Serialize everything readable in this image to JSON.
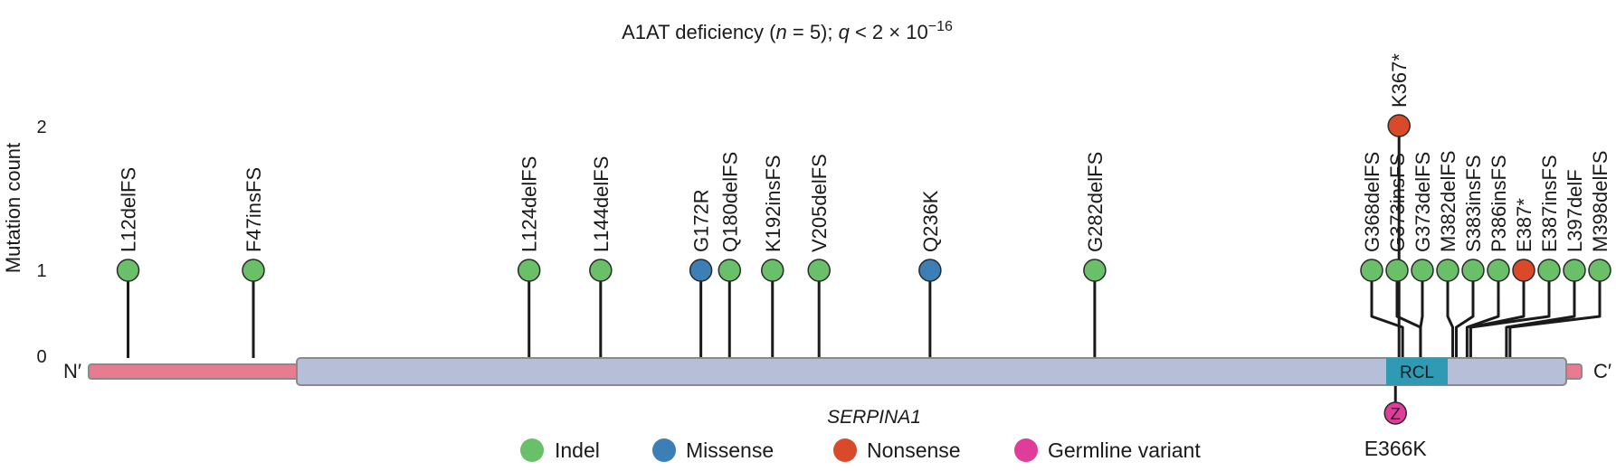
{
  "chart_data": {
    "type": "lollipop",
    "title_prefix": "A1AT deficiency (",
    "title_n_symbol": "n",
    "title_n_value": " = 5); ",
    "title_q_symbol": "q",
    "title_q_rest": " < 2 × 10",
    "title_exponent": "−16",
    "ylabel": "Mutation count",
    "yticks": [
      "0",
      "1",
      "2"
    ],
    "ylim": [
      0,
      2
    ],
    "gene": "SERPINA1",
    "protein_length": 418,
    "n_terminus_label": "N′",
    "c_terminus_label": "C′",
    "domains": [
      {
        "name": "signal",
        "label": "",
        "start": 1,
        "end": 24,
        "color": "#e77b8f"
      },
      {
        "name": "serpin",
        "label": "",
        "start": 24,
        "end": 410,
        "color": "#b7bfd8"
      },
      {
        "name": "rcl",
        "label": "RCL",
        "start": 358,
        "end": 374,
        "color": "#2e9ab3"
      }
    ],
    "mutations": [
      {
        "label": "L12delFS",
        "position": 12,
        "count": 1,
        "type": "Indel"
      },
      {
        "label": "F47insFS",
        "position": 47,
        "count": 1,
        "type": "Indel"
      },
      {
        "label": "L124delFS",
        "position": 124,
        "count": 1,
        "type": "Indel"
      },
      {
        "label": "L144delFS",
        "position": 144,
        "count": 1,
        "type": "Indel"
      },
      {
        "label": "G172R",
        "position": 172,
        "count": 1,
        "type": "Missense"
      },
      {
        "label": "Q180delFS",
        "position": 180,
        "count": 1,
        "type": "Indel"
      },
      {
        "label": "K192insFS",
        "position": 192,
        "count": 1,
        "type": "Indel"
      },
      {
        "label": "V205delFS",
        "position": 205,
        "count": 1,
        "type": "Indel"
      },
      {
        "label": "Q236K",
        "position": 236,
        "count": 1,
        "type": "Missense"
      },
      {
        "label": "G282delFS",
        "position": 282,
        "count": 1,
        "type": "Indel"
      },
      {
        "label": "K367*",
        "position": 367,
        "count": 2,
        "type": "Nonsense"
      },
      {
        "label": "G368delFS",
        "position": 368,
        "count": 1,
        "type": "Indel"
      },
      {
        "label": "G373insFS",
        "position": 373,
        "count": 1,
        "type": "Indel"
      },
      {
        "label": "G373delFS",
        "position": 373,
        "count": 1,
        "type": "Indel"
      },
      {
        "label": "M382delFS",
        "position": 382,
        "count": 1,
        "type": "Indel"
      },
      {
        "label": "S383insFS",
        "position": 383,
        "count": 1,
        "type": "Indel"
      },
      {
        "label": "P386insFS",
        "position": 386,
        "count": 1,
        "type": "Indel"
      },
      {
        "label": "E387*",
        "position": 387,
        "count": 1,
        "type": "Nonsense"
      },
      {
        "label": "E387insFS",
        "position": 387,
        "count": 1,
        "type": "Indel"
      },
      {
        "label": "L397delF",
        "position": 397,
        "count": 1,
        "type": "Indel"
      },
      {
        "label": "M398delFS",
        "position": 398,
        "count": 1,
        "type": "Indel"
      }
    ],
    "germline": [
      {
        "label": "E366K",
        "symbol": "Z",
        "position": 366,
        "type": "Germline variant"
      }
    ],
    "legend": [
      {
        "label": "Indel",
        "color": "#6abf69"
      },
      {
        "label": "Missense",
        "color": "#3b7fb6"
      },
      {
        "label": "Nonsense",
        "color": "#d94a2b"
      },
      {
        "label": "Germline variant",
        "color": "#e03c9a"
      }
    ],
    "legend_position": "bottom"
  }
}
